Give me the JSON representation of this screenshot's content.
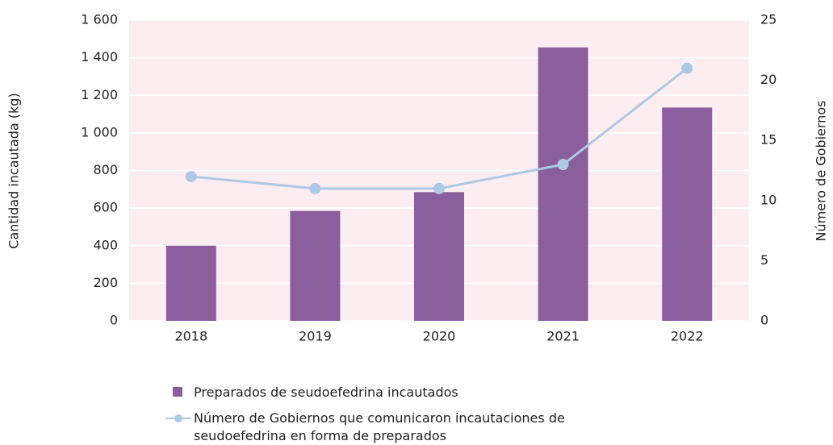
{
  "chart_data": {
    "type": "bar",
    "categories": [
      "2018",
      "2019",
      "2020",
      "2021",
      "2022"
    ],
    "series": [
      {
        "name": "Preparados de seudoefedrina incautados",
        "type": "bar",
        "color": "#8b5f9e",
        "values": [
          400,
          585,
          685,
          1455,
          1135
        ]
      },
      {
        "name": "Número de Gobiernos que comunicaron incautaciones de seudoefedrina en forma de preparados",
        "type": "line",
        "axis": "y2",
        "color": "#adc9e3",
        "values": [
          12,
          11,
          11,
          13,
          21
        ]
      }
    ],
    "ylabel": "Cantidad incautada (kg)",
    "y2label": "Número de Gobiernos",
    "ylim": [
      0,
      1600
    ],
    "yticks": [
      0,
      200,
      400,
      600,
      800,
      {
        "value": 1000,
        "label": "1 000"
      },
      {
        "value": 1200,
        "label": "1 200"
      },
      {
        "value": 1400,
        "label": "1 400"
      },
      {
        "value": 1600,
        "label": "1 600"
      }
    ],
    "y2lim": [
      0,
      25
    ],
    "y2ticks": [
      0,
      5,
      10,
      15,
      20,
      25
    ],
    "grid": true,
    "background": "#fcedf1"
  }
}
